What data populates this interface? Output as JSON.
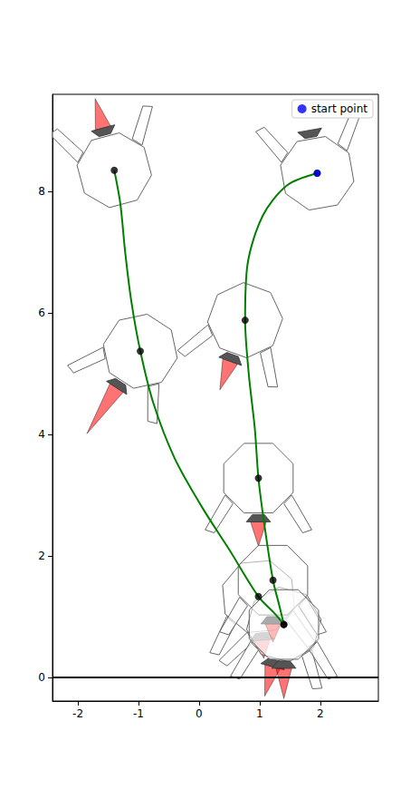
{
  "chart_data": {
    "type": "scatter",
    "xlim": [
      -2.42,
      2.96
    ],
    "ylim": [
      -0.39,
      9.6
    ],
    "xticks": [
      -2,
      -1,
      0,
      1,
      2
    ],
    "yticks": [
      0,
      2,
      4,
      6,
      8
    ],
    "legend": "upper right",
    "ground": 0,
    "series": [
      {
        "name": "start point",
        "color": "#0000ff",
        "marker": "circle",
        "x": [
          1.95
        ],
        "y": [
          8.3
        ]
      }
    ],
    "trajectories": [
      {
        "color": "#008000",
        "path_x": [
          -1.4,
          -1.3,
          -1.22,
          -1.12,
          -0.97,
          -0.75,
          -0.4,
          0.05,
          0.5,
          0.98,
          1.25,
          1.4
        ],
        "path_y": [
          8.35,
          7.8,
          7.0,
          6.2,
          5.37,
          4.5,
          3.6,
          2.8,
          2.1,
          1.33,
          1.05,
          0.87
        ],
        "waypoints_x": [
          -1.4,
          -0.97,
          0.98,
          1.4
        ],
        "waypoints_y": [
          8.35,
          5.37,
          1.33,
          0.87
        ],
        "angle": [
          195,
          -33,
          5,
          -15
        ],
        "flame": [
          0.5,
          0.9,
          0.3,
          0.5
        ]
      },
      {
        "color": "#008000",
        "path_x": [
          1.95,
          1.45,
          1.05,
          0.8,
          0.76,
          0.82,
          0.92,
          0.98,
          1.08,
          1.22,
          1.32,
          1.4
        ],
        "path_y": [
          8.3,
          8.1,
          7.6,
          6.8,
          5.88,
          5.0,
          4.1,
          3.28,
          2.5,
          1.6,
          1.2,
          0.87
        ],
        "waypoints_x": [
          1.95,
          0.76,
          0.98,
          1.22,
          1.4
        ],
        "waypoints_y": [
          8.3,
          5.88,
          3.28,
          1.6,
          0.87
        ],
        "angle": [
          190,
          -20,
          0,
          0,
          0
        ],
        "flame": [
          0.0,
          0.5,
          0.4,
          0.3,
          0.5
        ]
      }
    ]
  }
}
